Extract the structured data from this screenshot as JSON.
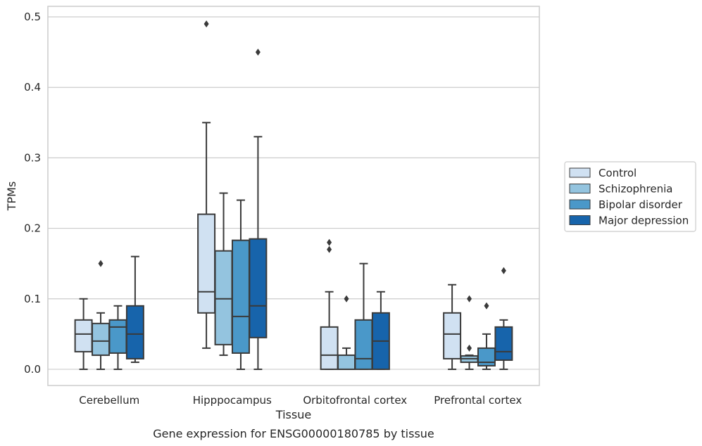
{
  "chart_data": {
    "type": "box",
    "caption": "Gene expression for ENSG00000180785 by tissue",
    "xlabel": "Tissue",
    "ylabel": "TPMs",
    "ylim": [
      -0.023,
      0.515
    ],
    "yticks": [
      0.0,
      0.1,
      0.2,
      0.3,
      0.4,
      0.5
    ],
    "ytick_labels": [
      "0.0",
      "0.1",
      "0.2",
      "0.3",
      "0.4",
      "0.5"
    ],
    "categories": [
      "Cerebellum",
      "Hipppocampus",
      "Orbitofrontal cortex",
      "Prefrontal cortex"
    ],
    "grid": "horizontal",
    "legend_position": "right",
    "series": [
      {
        "name": "Control",
        "color": "#d0e1f2",
        "boxes": [
          {
            "whislo": 0.0,
            "q1": 0.025,
            "med": 0.05,
            "q3": 0.07,
            "whishi": 0.1,
            "fliers": []
          },
          {
            "whislo": 0.03,
            "q1": 0.08,
            "med": 0.11,
            "q3": 0.22,
            "whishi": 0.35,
            "fliers": [
              0.49
            ]
          },
          {
            "whislo": 0.0,
            "q1": 0.0,
            "med": 0.02,
            "q3": 0.06,
            "whishi": 0.11,
            "fliers": [
              0.17,
              0.18
            ]
          },
          {
            "whislo": 0.0,
            "q1": 0.015,
            "med": 0.05,
            "q3": 0.08,
            "whishi": 0.12,
            "fliers": []
          }
        ]
      },
      {
        "name": "Schizophrenia",
        "color": "#94c4df",
        "boxes": [
          {
            "whislo": 0.0,
            "q1": 0.02,
            "med": 0.04,
            "q3": 0.065,
            "whishi": 0.08,
            "fliers": [
              0.15
            ]
          },
          {
            "whislo": 0.02,
            "q1": 0.035,
            "med": 0.1,
            "q3": 0.168,
            "whishi": 0.25,
            "fliers": []
          },
          {
            "whislo": 0.0,
            "q1": 0.0,
            "med": 0.0,
            "q3": 0.02,
            "whishi": 0.03,
            "fliers": [
              0.1
            ]
          },
          {
            "whislo": 0.0,
            "q1": 0.01,
            "med": 0.015,
            "q3": 0.019,
            "whishi": 0.02,
            "fliers": [
              0.03,
              0.1
            ]
          }
        ]
      },
      {
        "name": "Bipolar disorder",
        "color": "#4a98c9",
        "boxes": [
          {
            "whislo": 0.0,
            "q1": 0.023,
            "med": 0.06,
            "q3": 0.07,
            "whishi": 0.09,
            "fliers": []
          },
          {
            "whislo": 0.0,
            "q1": 0.023,
            "med": 0.075,
            "q3": 0.183,
            "whishi": 0.24,
            "fliers": []
          },
          {
            "whislo": 0.0,
            "q1": 0.0,
            "med": 0.015,
            "q3": 0.07,
            "whishi": 0.15,
            "fliers": []
          },
          {
            "whislo": 0.0,
            "q1": 0.005,
            "med": 0.01,
            "q3": 0.03,
            "whishi": 0.05,
            "fliers": [
              0.09
            ]
          }
        ]
      },
      {
        "name": "Major depression",
        "color": "#1764ab",
        "boxes": [
          {
            "whislo": 0.01,
            "q1": 0.015,
            "med": 0.05,
            "q3": 0.09,
            "whishi": 0.16,
            "fliers": []
          },
          {
            "whislo": 0.0,
            "q1": 0.045,
            "med": 0.09,
            "q3": 0.185,
            "whishi": 0.33,
            "fliers": [
              0.45
            ]
          },
          {
            "whislo": 0.0,
            "q1": 0.0,
            "med": 0.04,
            "q3": 0.08,
            "whishi": 0.11,
            "fliers": []
          },
          {
            "whislo": 0.0,
            "q1": 0.013,
            "med": 0.025,
            "q3": 0.06,
            "whishi": 0.07,
            "fliers": [
              0.14
            ]
          }
        ]
      }
    ],
    "line_color": "#3a3a3a",
    "grid_color": "#cccccc",
    "frame_color": "#cccccc"
  }
}
